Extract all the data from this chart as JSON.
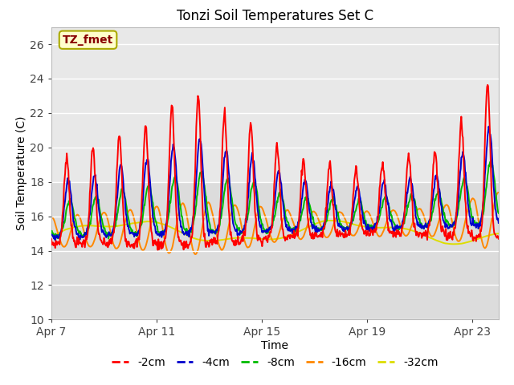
{
  "title": "Tonzi Soil Temperatures Set C",
  "xlabel": "Time",
  "ylabel": "Soil Temperature (C)",
  "ylim": [
    10,
    27
  ],
  "xlim_days": [
    0,
    17
  ],
  "x_ticks_days": [
    0,
    4,
    8,
    12,
    16
  ],
  "x_tick_labels": [
    "Apr 7",
    "Apr 11",
    "Apr 15",
    "Apr 19",
    "Apr 23"
  ],
  "yticks": [
    10,
    12,
    14,
    16,
    18,
    20,
    22,
    24,
    26
  ],
  "bg_color_lower": "#dcdcdc",
  "bg_color_upper": "#e8e8e8",
  "series_colors": [
    "#ff0000",
    "#0000cc",
    "#00bb00",
    "#ff8800",
    "#dddd00"
  ],
  "series_labels": [
    "-2cm",
    "-4cm",
    "-8cm",
    "-16cm",
    "-32cm"
  ],
  "annotation_text": "TZ_fmet",
  "annotation_fg": "#880000",
  "annotation_bg": "#ffffcc",
  "annotation_border": "#aaaa00",
  "title_fontsize": 12,
  "axis_label_fontsize": 10,
  "tick_fontsize": 10,
  "legend_fontsize": 10,
  "lw": 1.4
}
